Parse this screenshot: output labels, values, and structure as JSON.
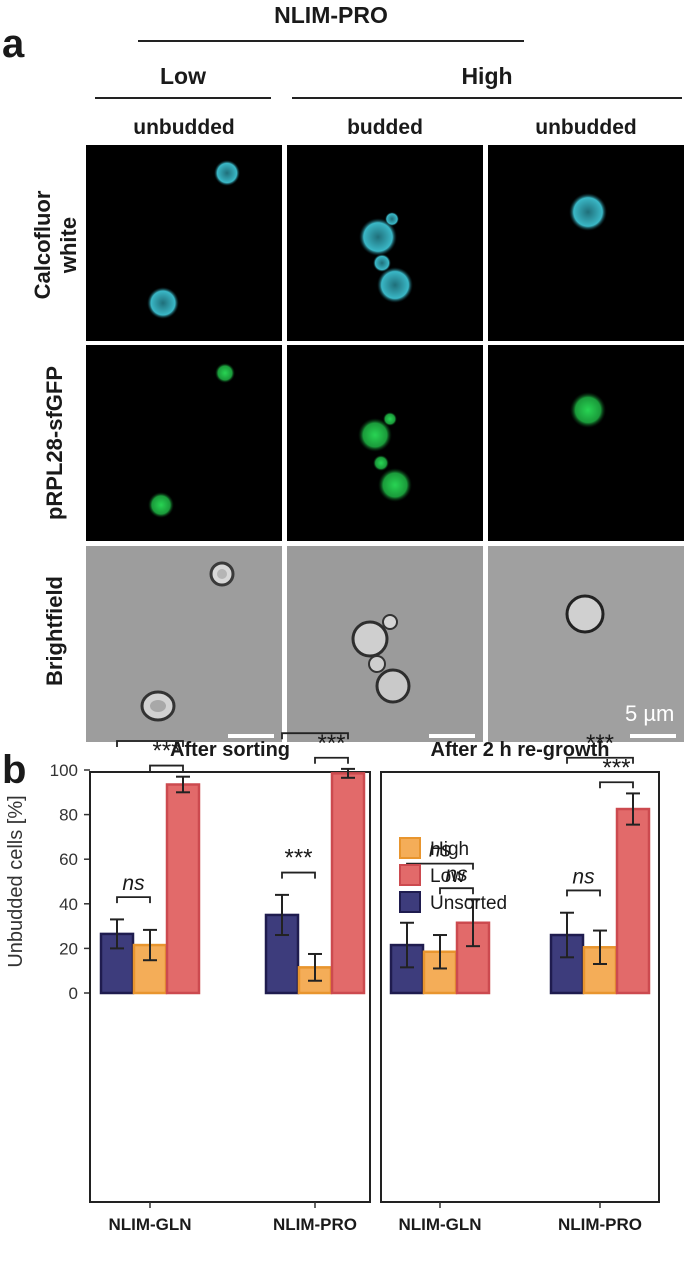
{
  "panel_a": {
    "letter": "a",
    "medium": "NLIM-PRO",
    "low": "Low",
    "high": "High",
    "columns": [
      "unbudded",
      "budded",
      "unbudded"
    ],
    "rows": [
      "Calcofluor white",
      "pRPL28-sfGFP",
      "Brightfield"
    ],
    "scale_bar": "5 µm",
    "colors": {
      "calcofluor": "#3ab7c6",
      "gfp": "#22c44a",
      "brightfield": "#9a9a9a"
    }
  },
  "panel_b": {
    "letter": "b"
  },
  "chart_data": {
    "type": "bar",
    "facets": [
      "After sorting",
      "After 2 h re-growth"
    ],
    "categories": [
      "NLIM-GLN",
      "NLIM-PRO"
    ],
    "ylabel": "Unbudded cells [%]",
    "ylim": [
      0,
      125
    ],
    "yticks": [
      0,
      20,
      40,
      60,
      80,
      100
    ],
    "grid": false,
    "legend_position": "top-left of right facet",
    "series": [
      {
        "name": "Unsorted",
        "fill": "#3d3c7c",
        "stroke": "#1f1c4f",
        "values": [
          [
            26.5,
            35.0
          ],
          [
            21.5,
            26.0
          ]
        ],
        "errors": [
          [
            6.5,
            9.0
          ],
          [
            10.0,
            10.0
          ]
        ]
      },
      {
        "name": "High",
        "fill": "#f4ad58",
        "stroke": "#e8952e",
        "values": [
          [
            21.5,
            11.5
          ],
          [
            18.5,
            20.5
          ]
        ],
        "errors": [
          [
            6.8,
            6.0
          ],
          [
            7.5,
            7.5
          ]
        ]
      },
      {
        "name": "Low",
        "fill": "#e26a6a",
        "stroke": "#cc4a4f",
        "values": [
          [
            93.5,
            98.5
          ],
          [
            31.5,
            82.5
          ]
        ],
        "errors": [
          [
            3.5,
            2.0
          ],
          [
            10.5,
            7.0
          ]
        ]
      }
    ],
    "legend_order": [
      "High",
      "Low",
      "Unsorted"
    ],
    "significance": [
      {
        "facet": 0,
        "category": 0,
        "pair": [
          "Unsorted",
          "High"
        ],
        "label": "ns",
        "level": 0
      },
      {
        "facet": 0,
        "category": 0,
        "pair": [
          "High",
          "Low"
        ],
        "label": "***",
        "level": 1
      },
      {
        "facet": 0,
        "category": 0,
        "pair": [
          "Unsorted",
          "Low"
        ],
        "label": "***",
        "level": 2
      },
      {
        "facet": 0,
        "category": 1,
        "pair": [
          "Unsorted",
          "High"
        ],
        "label": "***",
        "level": 0
      },
      {
        "facet": 0,
        "category": 1,
        "pair": [
          "High",
          "Low"
        ],
        "label": "***",
        "level": 1
      },
      {
        "facet": 0,
        "category": 1,
        "pair": [
          "Unsorted",
          "Low"
        ],
        "label": "***",
        "level": 2
      },
      {
        "facet": 1,
        "category": 0,
        "pair": [
          "High",
          "Low"
        ],
        "label": "ns",
        "level": 1
      },
      {
        "facet": 1,
        "category": 0,
        "pair": [
          "Unsorted",
          "Low"
        ],
        "label": "ns",
        "level": 2
      },
      {
        "facet": 1,
        "category": 1,
        "pair": [
          "Unsorted",
          "High"
        ],
        "label": "ns",
        "level": 0
      },
      {
        "facet": 1,
        "category": 1,
        "pair": [
          "High",
          "Low"
        ],
        "label": "***",
        "level": 1
      },
      {
        "facet": 1,
        "category": 1,
        "pair": [
          "Unsorted",
          "Low"
        ],
        "label": "***",
        "level": 2
      }
    ]
  }
}
